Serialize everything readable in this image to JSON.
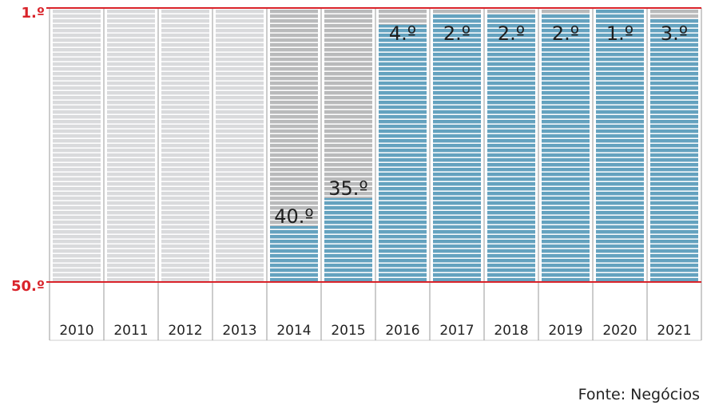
{
  "source": "Fonte: Negócios",
  "colors": {
    "empty_bar": "#d9dadc",
    "empty_bar_dark": "#b9babb",
    "filled_bar": "#64a2bf",
    "stripe": "#ffffff",
    "axis_line": "#d9232a",
    "divider": "#9a9a9a"
  },
  "chart_data": {
    "type": "bar",
    "categories": [
      "2010",
      "2011",
      "2012",
      "2013",
      "2014",
      "2015",
      "2016",
      "2017",
      "2018",
      "2019",
      "2020",
      "2021"
    ],
    "values": [
      null,
      null,
      null,
      null,
      40,
      35,
      4,
      2,
      2,
      2,
      1,
      3
    ],
    "value_labels": [
      "",
      "",
      "",
      "",
      "40.º",
      "35.º",
      "4.º",
      "2.º",
      "2.º",
      "2.º",
      "1.º",
      "3.º"
    ],
    "y_axis_labels": {
      "top": "1.º",
      "bottom": "50.º"
    },
    "ylim": [
      50,
      1
    ],
    "y_inverted": true,
    "grid": false,
    "legend": "none"
  }
}
